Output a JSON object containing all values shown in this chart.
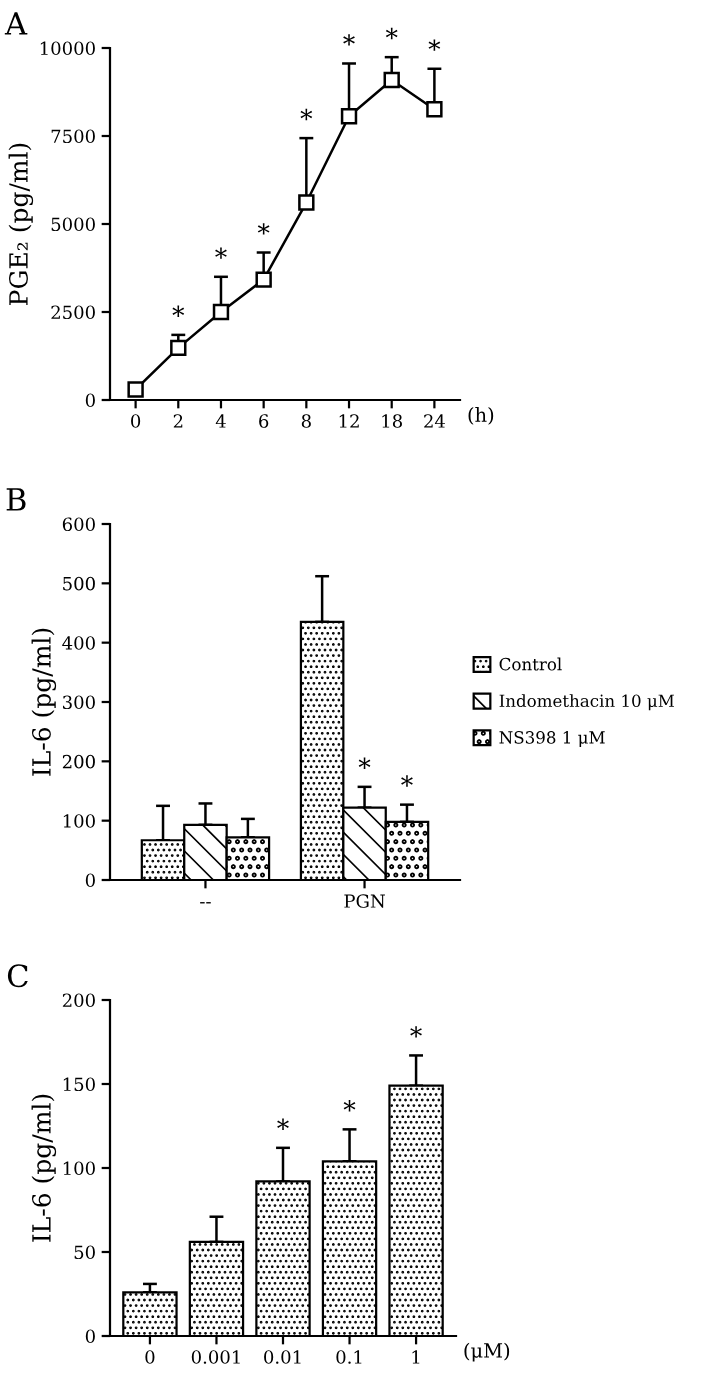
{
  "chart_data": [
    {
      "type": "line",
      "title": "A",
      "xlabel": "(h)",
      "ylabel": "PGE₂ (pg/ml)",
      "categories": [
        "0",
        "2",
        "4",
        "6",
        "8",
        "12",
        "18",
        "24"
      ],
      "series": [
        {
          "color": "#000000",
          "values": [
            300,
            1480,
            2500,
            3420,
            5610,
            8060,
            9090,
            8260
          ],
          "errors": [
            null,
            [
              1480,
              1850
            ],
            [
              2500,
              3500
            ],
            [
              3420,
              4190
            ],
            [
              5610,
              7440
            ],
            [
              8060,
              9560
            ],
            [
              9090,
              9740
            ],
            [
              8260,
              9410
            ]
          ]
        }
      ],
      "marker": "square",
      "line_style": "solid",
      "ylim": [
        0,
        10000
      ],
      "yticks": [
        0,
        2500,
        5000,
        7500,
        10000
      ],
      "grid": false,
      "legend": false,
      "annotations": [
        {
          "text": "*",
          "x": "2",
          "y": 1850
        },
        {
          "text": "*",
          "x": "4",
          "y": 3500
        },
        {
          "text": "*",
          "x": "6",
          "y": 4190
        },
        {
          "text": "*",
          "x": "8",
          "y": 7440
        },
        {
          "text": "*",
          "x": "12",
          "y": 9560
        },
        {
          "text": "*",
          "x": "18",
          "y": 9740
        },
        {
          "text": "*",
          "x": "24",
          "y": 9410
        }
      ]
    },
    {
      "type": "bar",
      "title": "B",
      "ylabel": "IL-6 (pg/ml)",
      "categories": [
        "--",
        "PGN"
      ],
      "series": [
        {
          "name": "Control",
          "color": "#000000",
          "values": [
            67,
            435
          ],
          "errors": [
            [
              67,
              125
            ],
            [
              435,
              512
            ]
          ]
        },
        {
          "name": "Indomethacin 10 μM",
          "color": "#000000",
          "values": [
            93,
            122
          ],
          "errors": [
            [
              93,
              129
            ],
            [
              122,
              157
            ]
          ]
        },
        {
          "name": "NS398 1 μM",
          "color": "#000000",
          "values": [
            72,
            98
          ],
          "errors": [
            [
              72,
              103
            ],
            [
              98,
              127
            ]
          ]
        }
      ],
      "ylim": [
        0,
        600
      ],
      "yticks": [
        0,
        100,
        200,
        300,
        400,
        500,
        600
      ],
      "grid": false,
      "legend": "right",
      "annotations": [
        {
          "text": "*",
          "x": "PGN",
          "y": 157
        },
        {
          "text": "*",
          "x": "PGN",
          "y": 127
        }
      ]
    },
    {
      "type": "bar",
      "title": "C",
      "xlabel": "(μM)",
      "ylabel": "IL-6 (pg/ml)",
      "categories": [
        "0",
        "0.001",
        "0.01",
        "0.1",
        "1"
      ],
      "series": [
        {
          "color": "#000000",
          "values": [
            26,
            56,
            92,
            104,
            149
          ],
          "errors": [
            [
              26,
              31
            ],
            [
              56,
              71
            ],
            [
              92,
              112
            ],
            [
              104,
              123
            ],
            [
              149,
              167
            ]
          ]
        }
      ],
      "ylim": [
        0,
        200
      ],
      "yticks": [
        0,
        50,
        100,
        150,
        200
      ],
      "grid": false,
      "legend": false,
      "annotations": [
        {
          "text": "*",
          "x": "0.01",
          "y": 112
        },
        {
          "text": "*",
          "x": "0.1",
          "y": 123
        },
        {
          "text": "*",
          "x": "1",
          "y": 167
        }
      ]
    }
  ]
}
